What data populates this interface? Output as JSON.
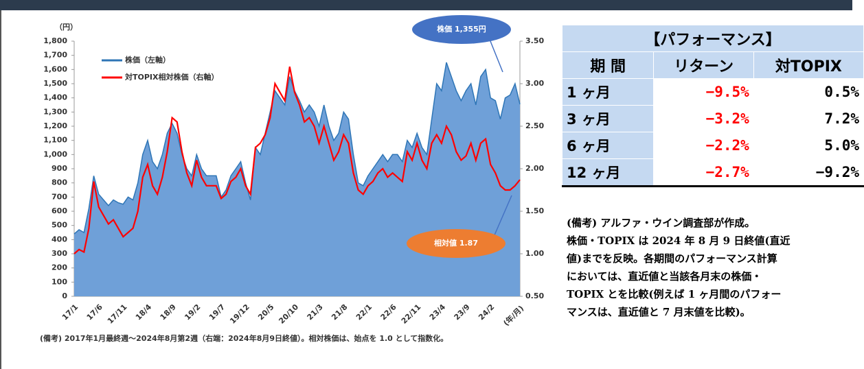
{
  "chart_data": {
    "type": "line",
    "y_unit": "（円）",
    "x_unit": "(年/月)",
    "categories": [
      "17/1",
      null,
      null,
      null,
      null,
      "17/6",
      null,
      null,
      null,
      null,
      "17/11",
      null,
      null,
      null,
      null,
      "18/4",
      null,
      null,
      null,
      null,
      "18/9",
      null,
      null,
      null,
      null,
      "19/2",
      null,
      null,
      null,
      null,
      "19/7",
      null,
      null,
      null,
      null,
      "19/12",
      null,
      null,
      null,
      null,
      "20/5",
      null,
      null,
      null,
      null,
      "20/10",
      null,
      null,
      null,
      null,
      "21/3",
      null,
      null,
      null,
      null,
      "21/8",
      null,
      null,
      null,
      null,
      "22/1",
      null,
      null,
      null,
      null,
      "22/6",
      null,
      null,
      null,
      null,
      "22/11",
      null,
      null,
      null,
      null,
      "23/4",
      null,
      null,
      null,
      null,
      "23/9",
      null,
      null,
      null,
      null,
      "24/2",
      null,
      null,
      null,
      null,
      null,
      null
    ],
    "series": [
      {
        "name": "株価（左軸）",
        "color": "#2e75b6",
        "area": true,
        "fill": "#6fa0d8",
        "values": [
          440,
          470,
          450,
          620,
          850,
          720,
          680,
          640,
          680,
          660,
          650,
          700,
          680,
          800,
          1000,
          1100,
          950,
          900,
          1000,
          1150,
          1220,
          1150,
          1000,
          900,
          850,
          1000,
          900,
          850,
          850,
          850,
          700,
          750,
          850,
          900,
          950,
          800,
          680,
          1050,
          1000,
          1150,
          1300,
          1450,
          1400,
          1350,
          1550,
          1450,
          1380,
          1300,
          1350,
          1300,
          1200,
          1350,
          1200,
          1100,
          1150,
          1300,
          1250,
          1000,
          800,
          780,
          850,
          900,
          950,
          1000,
          950,
          1000,
          1000,
          950,
          1100,
          1050,
          1150,
          1050,
          1000,
          1250,
          1500,
          1450,
          1650,
          1550,
          1450,
          1380,
          1450,
          1500,
          1350,
          1550,
          1600,
          1400,
          1380,
          1250,
          1400,
          1420,
          1500,
          1355
        ]
      },
      {
        "name": "対TOPIX相対株価（右軸）",
        "color": "#ff0000",
        "axis": "y2",
        "area": false,
        "values": [
          1.0,
          1.05,
          1.02,
          1.3,
          1.85,
          1.55,
          1.45,
          1.35,
          1.4,
          1.3,
          1.2,
          1.25,
          1.3,
          1.5,
          1.9,
          2.05,
          1.8,
          1.7,
          1.9,
          2.2,
          2.6,
          2.55,
          2.2,
          1.95,
          1.8,
          2.1,
          1.9,
          1.8,
          1.8,
          1.8,
          1.65,
          1.7,
          1.85,
          1.9,
          2.0,
          1.8,
          1.7,
          2.25,
          2.3,
          2.4,
          2.6,
          3.0,
          2.9,
          2.8,
          3.2,
          2.9,
          2.75,
          2.55,
          2.6,
          2.5,
          2.3,
          2.5,
          2.3,
          2.1,
          2.2,
          2.4,
          2.3,
          1.95,
          1.75,
          1.7,
          1.8,
          1.85,
          1.95,
          2.0,
          1.9,
          1.95,
          1.9,
          1.85,
          2.2,
          2.1,
          2.3,
          2.1,
          2.0,
          2.3,
          2.4,
          2.3,
          2.5,
          2.4,
          2.2,
          2.1,
          2.15,
          2.3,
          2.1,
          2.3,
          2.35,
          2.05,
          1.95,
          1.8,
          1.75,
          1.75,
          1.8,
          1.87
        ]
      }
    ],
    "ylim": [
      0,
      1800
    ],
    "yticks": [
      0,
      100,
      200,
      300,
      400,
      500,
      600,
      700,
      800,
      900,
      {
        "value": 1000,
        "label": "1,000"
      },
      {
        "value": 1100,
        "label": "1,100"
      },
      {
        "value": 1200,
        "label": "1,200"
      },
      {
        "value": 1300,
        "label": "1,300"
      },
      {
        "value": 1400,
        "label": "1,400"
      },
      {
        "value": 1500,
        "label": "1,500"
      },
      {
        "value": 1600,
        "label": "1,600"
      },
      {
        "value": 1700,
        "label": "1,700"
      },
      {
        "value": 1800,
        "label": "1,800"
      }
    ],
    "y2lim": [
      0.5,
      3.5
    ],
    "y2ticks": [
      {
        "value": 0.5,
        "label": "0.50"
      },
      {
        "value": 1.0,
        "label": "1.00"
      },
      {
        "value": 1.5,
        "label": "1.50"
      },
      {
        "value": 2.0,
        "label": "2.00"
      },
      {
        "value": 2.5,
        "label": "2.50"
      },
      {
        "value": 3.0,
        "label": "3.00"
      },
      {
        "value": 3.5,
        "label": "3.50"
      }
    ],
    "grid": false,
    "legend": "upper left",
    "annotations": [
      {
        "text": "株価 1,355円",
        "color": "#4472c4"
      },
      {
        "text": "相対値 1.87",
        "color": "#ed7d31"
      }
    ],
    "footnote": "(備考) 2017年1月最終週～2024年8月第2週（右端：2024年8月9日終値）。相対株価は、始点を 1.0 として指数化。"
  },
  "table": {
    "title": "【パフォーマンス】",
    "headers": [
      "期 間",
      "リターン",
      "対TOPIX"
    ],
    "rows": [
      [
        "1 ヶ月",
        "−9.5%",
        "0.5%"
      ],
      [
        "3 ヶ月",
        "−3.2%",
        "7.2%"
      ],
      [
        "6 ヶ月",
        "−2.2%",
        "5.0%"
      ],
      [
        "12 ヶ月",
        "−2.7%",
        "−9.2%"
      ]
    ]
  },
  "notes": [
    "(備考) アルファ・ウイン調査部が作成。",
    "株価・TOPIX は 2024 年 8 月 9 日終値(直近",
    "値)までを反映。各期間のパフォーマンス計算",
    "においては、直近値と当該各月末の株価・",
    "TOPIX とを比較(例えば 1 ヶ月間のパフォー",
    "マンスは、直近値と 7 月末値を比較)。"
  ]
}
